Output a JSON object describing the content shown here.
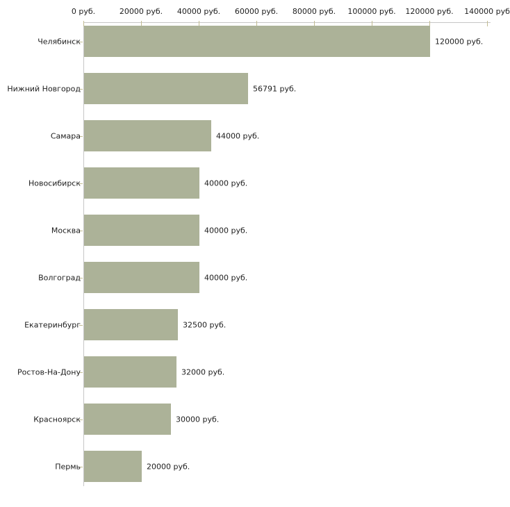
{
  "chart_data": {
    "type": "bar",
    "orientation": "horizontal",
    "title": "",
    "xlabel": "",
    "ylabel": "",
    "categories": [
      "Челябинск",
      "Нижний Новгород",
      "Самара",
      "Новосибирск",
      "Москва",
      "Волгоград",
      "Екатеринбург",
      "Ростов-На-Дону",
      "Красноярск",
      "Пермь"
    ],
    "values": [
      120000,
      56791,
      44000,
      40000,
      40000,
      40000,
      32500,
      32000,
      30000,
      20000
    ],
    "value_labels": [
      "120000 руб.",
      "56791 руб.",
      "44000 руб.",
      "40000 руб.",
      "40000 руб.",
      "40000 руб.",
      "32500 руб.",
      "32000 руб.",
      "30000 руб.",
      "20000 руб."
    ],
    "x_ticks": [
      0,
      20000,
      40000,
      60000,
      80000,
      100000,
      120000,
      140000
    ],
    "x_tick_labels": [
      "0 руб.",
      "20000 руб.",
      "40000 руб.",
      "60000 руб.",
      "80000 руб.",
      "100000 руб.",
      "120000 руб.",
      "140000 руб"
    ],
    "xlim": [
      0,
      140000
    ],
    "grid": false,
    "legend": null,
    "axis_position": "top",
    "colors": {
      "bar": "#acb298",
      "axis_line": "#c6c6c6",
      "tick_mark": "#c2bc92",
      "text": "#1d1d1d",
      "background": "#ffffff"
    }
  }
}
